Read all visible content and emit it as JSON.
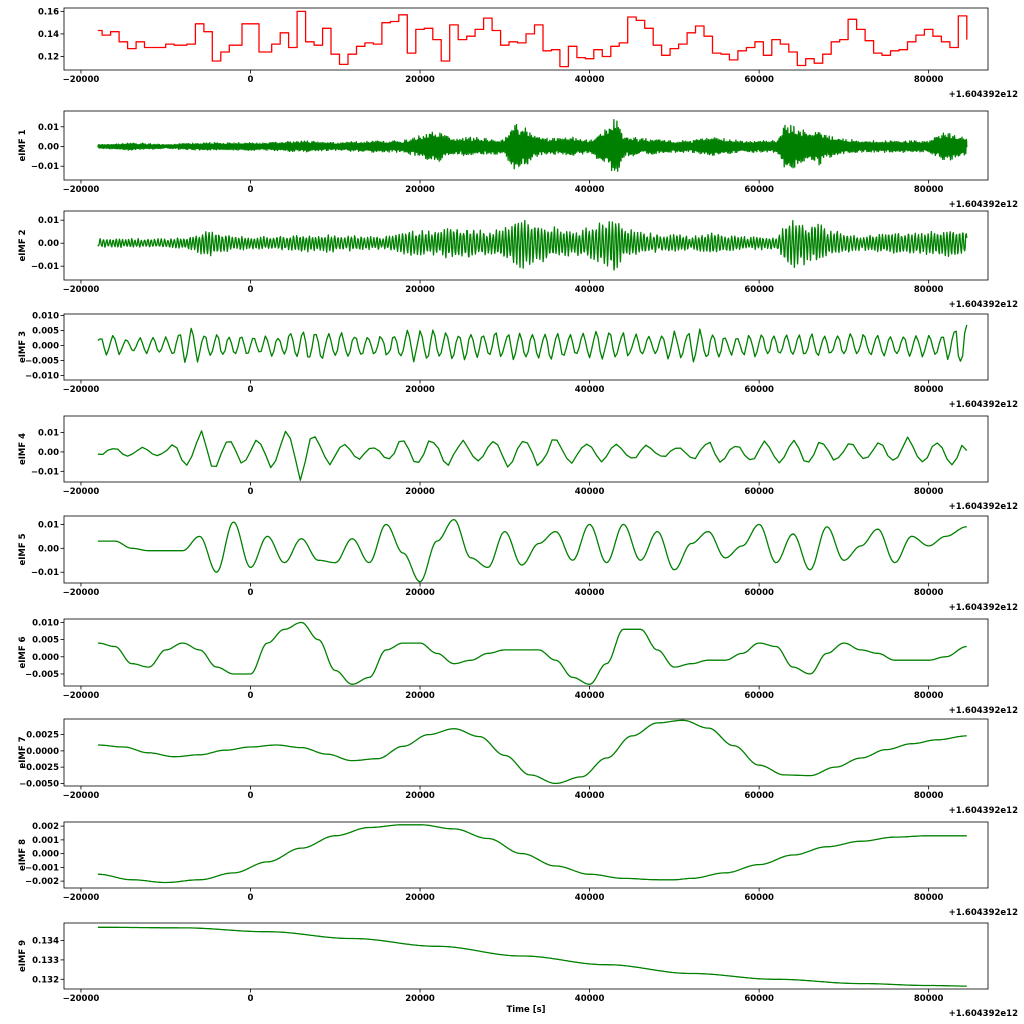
{
  "figure": {
    "x_range": [
      -22000,
      87000
    ],
    "x_ticks": [
      -20000,
      0,
      20000,
      40000,
      60000,
      80000
    ],
    "x_tick_labels": [
      "−20000",
      "0",
      "20000",
      "40000",
      "60000",
      "80000"
    ],
    "x_offset_label": "+1.604392e12",
    "x_start": -18000,
    "x_end": 84500
  },
  "chart_data": [
    {
      "type": "line",
      "name": "signal",
      "color": "#ff0000",
      "style": "step",
      "ylabel": "",
      "ylim": [
        0.108,
        0.163
      ],
      "yticks": [
        0.12,
        0.14,
        0.16
      ],
      "ytick_labels": [
        "0.12",
        "0.14",
        "0.16"
      ],
      "x": [
        -18000,
        -17500,
        -16500,
        -15500,
        -14500,
        -13500,
        -12500,
        -11500,
        -10000,
        -9000,
        -7500,
        -6500,
        -5500,
        -4500,
        -3500,
        -2500,
        -1000,
        1000,
        2500,
        3500,
        4500,
        5500,
        6500,
        7500,
        8500,
        9500,
        10500,
        11500,
        12500,
        13500,
        14500,
        15500,
        16500,
        17500,
        18500,
        19500,
        20500,
        21500,
        22500,
        23500,
        24500,
        25500,
        26500,
        27500,
        28500,
        29500,
        30500,
        31500,
        32500,
        33500,
        34500,
        35500,
        36500,
        37500,
        38500,
        39500,
        40500,
        41500,
        42500,
        43500,
        44500,
        45500,
        46500,
        47500,
        48500,
        49500,
        50500,
        51500,
        52500,
        53500,
        54500,
        55500,
        56500,
        57500,
        58500,
        59500,
        60500,
        61500,
        62500,
        63500,
        64500,
        65500,
        66500,
        67500,
        68500,
        69500,
        70500,
        71500,
        72500,
        73500,
        74500,
        75500,
        76500,
        77500,
        78500,
        79500,
        80500,
        81500,
        82500,
        83500,
        84500
      ],
      "y": [
        0.143,
        0.139,
        0.142,
        0.133,
        0.127,
        0.133,
        0.128,
        0.128,
        0.131,
        0.13,
        0.131,
        0.149,
        0.142,
        0.116,
        0.124,
        0.13,
        0.149,
        0.124,
        0.131,
        0.141,
        0.128,
        0.16,
        0.133,
        0.13,
        0.145,
        0.122,
        0.113,
        0.122,
        0.129,
        0.132,
        0.131,
        0.15,
        0.151,
        0.157,
        0.123,
        0.144,
        0.145,
        0.135,
        0.116,
        0.148,
        0.135,
        0.138,
        0.144,
        0.154,
        0.143,
        0.13,
        0.133,
        0.132,
        0.14,
        0.148,
        0.125,
        0.126,
        0.111,
        0.129,
        0.119,
        0.118,
        0.126,
        0.12,
        0.129,
        0.132,
        0.155,
        0.152,
        0.145,
        0.13,
        0.121,
        0.127,
        0.131,
        0.141,
        0.147,
        0.138,
        0.123,
        0.122,
        0.117,
        0.125,
        0.128,
        0.133,
        0.121,
        0.135,
        0.131,
        0.124,
        0.112,
        0.118,
        0.114,
        0.122,
        0.133,
        0.135,
        0.153,
        0.144,
        0.134,
        0.123,
        0.121,
        0.125,
        0.126,
        0.133,
        0.139,
        0.144,
        0.138,
        0.133,
        0.128,
        0.156,
        0.135
      ]
    },
    {
      "type": "line",
      "name": "eIMF 1",
      "ylabel": "eIMF 1",
      "color": "#008000",
      "style": "line",
      "ylim": [
        -0.017,
        0.018
      ],
      "yticks": [
        -0.01,
        0.0,
        0.01
      ],
      "ytick_labels": [
        "−0.01",
        "0.00",
        "0.01"
      ],
      "x": [
        -18000,
        -14000,
        -10000,
        -6000,
        -2000,
        2000,
        6000,
        10000,
        14000,
        18000,
        20000,
        22000,
        24000,
        26000,
        28000,
        30000,
        31000,
        32000,
        33000,
        34000,
        36000,
        38000,
        40000,
        41000,
        42000,
        43000,
        44000,
        46000,
        48000,
        50000,
        52000,
        54000,
        56000,
        58000,
        60000,
        62000,
        63000,
        64000,
        65000,
        66000,
        67000,
        68000,
        70000,
        72000,
        74000,
        76000,
        78000,
        80000,
        82000,
        84500
      ],
      "y": [
        0.001,
        0.002,
        0.001,
        0.002,
        0.002,
        0.002,
        0.003,
        0.002,
        0.003,
        0.003,
        0.006,
        0.008,
        0.004,
        0.005,
        0.004,
        0.004,
        0.013,
        0.011,
        0.008,
        0.005,
        0.004,
        0.005,
        0.003,
        0.007,
        0.01,
        0.016,
        0.006,
        0.004,
        0.004,
        0.003,
        0.003,
        0.005,
        0.004,
        0.003,
        0.003,
        0.003,
        0.011,
        0.011,
        0.009,
        0.007,
        0.01,
        0.006,
        0.004,
        0.003,
        0.003,
        0.003,
        0.003,
        0.003,
        0.008,
        0.004
      ]
    },
    {
      "type": "line",
      "name": "eIMF 2",
      "ylabel": "eIMF 2",
      "color": "#008000",
      "style": "line",
      "ylim": [
        -0.016,
        0.014
      ],
      "yticks": [
        -0.01,
        0.0,
        0.01
      ],
      "ytick_labels": [
        "−0.01",
        "0.00",
        "0.01"
      ],
      "x": [
        -18000,
        -14000,
        -10000,
        -7000,
        -5000,
        -2000,
        2000,
        6000,
        10000,
        14000,
        16000,
        18000,
        20000,
        22000,
        24000,
        26000,
        28000,
        30000,
        31000,
        32000,
        33000,
        35000,
        37000,
        39000,
        41000,
        42000,
        43000,
        44000,
        46000,
        48000,
        50000,
        52000,
        54000,
        56000,
        58000,
        60000,
        62000,
        63000,
        64000,
        65000,
        66000,
        67000,
        68000,
        70000,
        72000,
        74000,
        76000,
        78000,
        80000,
        82000,
        84500
      ],
      "y": [
        0.002,
        0.002,
        0.002,
        0.003,
        0.006,
        0.003,
        0.003,
        0.004,
        0.004,
        0.003,
        0.003,
        0.005,
        0.006,
        0.005,
        0.008,
        0.007,
        0.005,
        0.007,
        0.009,
        0.012,
        0.01,
        0.008,
        0.006,
        0.006,
        0.009,
        0.01,
        0.015,
        0.007,
        0.005,
        0.004,
        0.004,
        0.003,
        0.005,
        0.004,
        0.003,
        0.003,
        0.003,
        0.008,
        0.011,
        0.01,
        0.008,
        0.009,
        0.006,
        0.005,
        0.003,
        0.004,
        0.005,
        0.005,
        0.005,
        0.006,
        0.006
      ]
    },
    {
      "type": "line",
      "name": "eIMF 3",
      "ylabel": "eIMF 3",
      "color": "#008000",
      "style": "line",
      "ylim": [
        -0.0115,
        0.0105
      ],
      "yticks": [
        -0.01,
        -0.005,
        0.0,
        0.005,
        0.01
      ],
      "ytick_labels": [
        "−0.010",
        "−0.005",
        "0.000",
        "0.005",
        "0.010"
      ],
      "x": [
        -18000,
        -14000,
        -10000,
        -7000,
        -5000,
        -2000,
        1000,
        3000,
        6000,
        9000,
        12000,
        15000,
        17000,
        20000,
        23000,
        26000,
        29000,
        32000,
        35000,
        38000,
        41000,
        44000,
        47000,
        50000,
        53000,
        56000,
        59000,
        62000,
        65000,
        68000,
        71000,
        74000,
        77000,
        80000,
        82000,
        83500,
        84500
      ],
      "y": [
        0.004,
        0.003,
        0.003,
        0.007,
        0.005,
        0.004,
        0.003,
        0.004,
        0.006,
        0.005,
        0.004,
        0.004,
        0.005,
        0.006,
        0.005,
        0.005,
        0.005,
        0.005,
        0.005,
        0.004,
        0.005,
        0.005,
        0.004,
        0.005,
        0.006,
        0.004,
        0.004,
        0.004,
        0.004,
        0.004,
        0.004,
        0.004,
        0.004,
        0.004,
        0.004,
        0.009,
        0.011
      ]
    },
    {
      "type": "line",
      "name": "eIMF 4",
      "ylabel": "eIMF 4",
      "color": "#008000",
      "style": "line",
      "ylim": [
        -0.0155,
        0.0185
      ],
      "yticks": [
        -0.01,
        0.0,
        0.01
      ],
      "ytick_labels": [
        "−0.01",
        "0.00",
        "0.01"
      ],
      "x": [
        -18000,
        -14000,
        -10000,
        -7000,
        -5000,
        -2000,
        1000,
        3000,
        6000,
        9000,
        12000,
        15000,
        18000,
        21000,
        24000,
        27000,
        30000,
        33000,
        36000,
        39000,
        42000,
        45000,
        48000,
        51000,
        54000,
        57000,
        60000,
        63000,
        66000,
        69000,
        72000,
        75000,
        78000,
        81000,
        83500,
        84500
      ],
      "y": [
        0.002,
        0.003,
        0.002,
        0.012,
        0.011,
        0.008,
        0.009,
        0.012,
        0.016,
        0.007,
        0.005,
        0.003,
        0.008,
        0.009,
        0.007,
        0.007,
        0.008,
        0.009,
        0.01,
        0.006,
        0.005,
        0.005,
        0.004,
        0.003,
        0.007,
        0.005,
        0.006,
        0.007,
        0.007,
        0.006,
        0.004,
        0.006,
        0.008,
        0.006,
        0.01,
        0.001
      ]
    },
    {
      "type": "line",
      "name": "eIMF 5",
      "ylabel": "eIMF 5",
      "color": "#008000",
      "style": "line",
      "ylim": [
        -0.0145,
        0.0135
      ],
      "yticks": [
        -0.01,
        0.0,
        0.01
      ],
      "ytick_labels": [
        "−0.01",
        "0.00",
        "0.01"
      ],
      "x": [
        -18000,
        -16000,
        -14000,
        -12000,
        -10000,
        -8000,
        -6000,
        -4000,
        -2000,
        0,
        2000,
        4000,
        6000,
        8000,
        10000,
        12000,
        14000,
        16000,
        18000,
        20000,
        22000,
        24000,
        26000,
        28000,
        30000,
        32000,
        34000,
        36000,
        38000,
        40000,
        42000,
        44000,
        46000,
        48000,
        50000,
        52000,
        54000,
        56000,
        58000,
        60000,
        62000,
        64000,
        66000,
        68000,
        70000,
        72000,
        74000,
        76000,
        78000,
        80000,
        82000,
        84500
      ],
      "y": [
        0.003,
        0.003,
        0.0,
        -0.001,
        -0.001,
        -0.001,
        0.005,
        -0.01,
        0.011,
        -0.008,
        0.005,
        -0.006,
        0.004,
        -0.005,
        -0.006,
        0.004,
        -0.006,
        0.01,
        -0.002,
        -0.014,
        0.003,
        0.012,
        -0.004,
        -0.008,
        0.007,
        -0.007,
        0.002,
        0.007,
        -0.005,
        0.01,
        -0.006,
        0.01,
        -0.005,
        0.007,
        -0.009,
        0.002,
        0.007,
        -0.004,
        0.001,
        0.01,
        -0.006,
        0.006,
        -0.009,
        0.009,
        -0.005,
        0.001,
        0.008,
        -0.006,
        0.005,
        0.001,
        0.005,
        0.009
      ]
    },
    {
      "type": "line",
      "name": "eIMF 6",
      "ylabel": "eIMF 6",
      "color": "#008000",
      "style": "line",
      "ylim": [
        -0.0085,
        0.011
      ],
      "yticks": [
        -0.005,
        0.0,
        0.005,
        0.01
      ],
      "ytick_labels": [
        "−0.005",
        "0.000",
        "0.005",
        "0.010"
      ],
      "x": [
        -18000,
        -16000,
        -14000,
        -12000,
        -10000,
        -8000,
        -6000,
        -4000,
        -2000,
        0,
        2000,
        4000,
        6000,
        8000,
        10000,
        12000,
        14000,
        16000,
        18000,
        20000,
        22000,
        24000,
        26000,
        28000,
        30000,
        32000,
        34000,
        36000,
        38000,
        40000,
        42000,
        44000,
        46000,
        48000,
        50000,
        52000,
        54000,
        56000,
        58000,
        60000,
        62000,
        64000,
        66000,
        68000,
        70000,
        72000,
        74000,
        76000,
        78000,
        80000,
        82000,
        84500
      ],
      "y": [
        0.004,
        0.003,
        -0.002,
        -0.003,
        0.002,
        0.004,
        0.002,
        -0.003,
        -0.005,
        -0.005,
        0.004,
        0.008,
        0.01,
        0.005,
        -0.004,
        -0.008,
        -0.006,
        0.002,
        0.004,
        0.004,
        0.001,
        -0.002,
        -0.001,
        0.001,
        0.002,
        0.002,
        0.002,
        -0.001,
        -0.006,
        -0.008,
        -0.002,
        0.008,
        0.008,
        0.002,
        -0.003,
        -0.002,
        -0.001,
        -0.001,
        0.001,
        0.004,
        0.003,
        -0.003,
        -0.005,
        0.001,
        0.004,
        0.002,
        0.001,
        -0.001,
        -0.001,
        -0.001,
        0.0,
        0.003
      ]
    },
    {
      "type": "line",
      "name": "eIMF 7",
      "ylabel": "eIMF 7",
      "color": "#008000",
      "style": "line",
      "ylim": [
        -0.0054,
        0.0049
      ],
      "yticks": [
        -0.005,
        -0.0025,
        0.0,
        0.0025
      ],
      "ytick_labels": [
        "−0.0050",
        "−0.0025",
        "0.0000",
        "0.0025"
      ],
      "x": [
        -18000,
        -15000,
        -12000,
        -9000,
        -6000,
        -3000,
        0,
        3000,
        6000,
        9000,
        12000,
        15000,
        18000,
        21000,
        24000,
        27000,
        30000,
        33000,
        36000,
        39000,
        42000,
        45000,
        48000,
        51000,
        54000,
        57000,
        60000,
        63000,
        66000,
        69000,
        72000,
        75000,
        78000,
        81000,
        84500
      ],
      "y": [
        0.0009,
        0.0006,
        -0.0003,
        -0.0009,
        -0.0006,
        0.0001,
        0.0006,
        0.0009,
        0.0005,
        -0.0005,
        -0.0015,
        -0.0012,
        0.0007,
        0.0025,
        0.0034,
        0.0022,
        -0.0007,
        -0.0037,
        -0.005,
        -0.004,
        -0.0011,
        0.0023,
        0.0043,
        0.0047,
        0.0035,
        0.0008,
        -0.0022,
        -0.0037,
        -0.0038,
        -0.0025,
        -0.0011,
        0.0002,
        0.0011,
        0.0017,
        0.0023
      ]
    },
    {
      "type": "line",
      "name": "eIMF 8",
      "ylabel": "eIMF 8",
      "color": "#008000",
      "style": "line",
      "ylim": [
        -0.0025,
        0.0023
      ],
      "yticks": [
        -0.002,
        -0.001,
        0.0,
        0.001,
        0.002
      ],
      "ytick_labels": [
        "−0.002",
        "−0.001",
        "0.000",
        "0.001",
        "0.002"
      ],
      "x": [
        -18000,
        -14000,
        -10000,
        -6000,
        -2000,
        2000,
        6000,
        10000,
        14000,
        18000,
        20000,
        24000,
        28000,
        32000,
        36000,
        40000,
        44000,
        48000,
        50000,
        52000,
        56000,
        60000,
        64000,
        68000,
        72000,
        76000,
        80000,
        84500
      ],
      "y": [
        -0.0015,
        -0.0019,
        -0.0021,
        -0.0019,
        -0.0014,
        -0.0006,
        0.0004,
        0.0013,
        0.0019,
        0.0021,
        0.0021,
        0.0018,
        0.0011,
        0.0,
        -0.0009,
        -0.0015,
        -0.0018,
        -0.0019,
        -0.0019,
        -0.0018,
        -0.0014,
        -0.0008,
        -0.0001,
        0.0005,
        0.0009,
        0.0012,
        0.0013,
        0.0013
      ]
    },
    {
      "type": "line",
      "name": "eIMF 9",
      "ylabel": "eIMF 9",
      "color": "#008000",
      "style": "line",
      "xlabel": "Time [s]",
      "ylim": [
        0.1315,
        0.1349
      ],
      "yticks": [
        0.132,
        0.133,
        0.134
      ],
      "ytick_labels": [
        "0.132",
        "0.133",
        "0.134"
      ],
      "x": [
        -18000,
        -8000,
        2000,
        12000,
        22000,
        32000,
        42000,
        52000,
        62000,
        72000,
        80000,
        84500
      ],
      "y": [
        0.13468,
        0.13465,
        0.13445,
        0.1341,
        0.1337,
        0.1332,
        0.13275,
        0.1323,
        0.132,
        0.13178,
        0.13168,
        0.13165
      ]
    }
  ]
}
